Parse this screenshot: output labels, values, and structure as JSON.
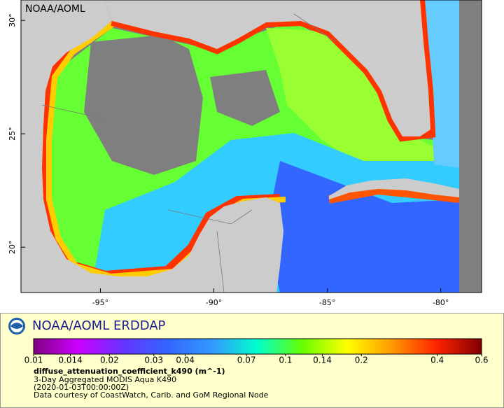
{
  "map": {
    "label": "NOAA/AOML",
    "xlim": [
      -98.5,
      -78.2
    ],
    "ylim": [
      18,
      30.9
    ],
    "xticks": [
      {
        "value": -95,
        "label": "-95°"
      },
      {
        "value": -90,
        "label": "-90°"
      },
      {
        "value": -85,
        "label": "-85°"
      },
      {
        "value": -80,
        "label": "-80°"
      }
    ],
    "yticks": [
      {
        "value": 30,
        "label": "30°"
      },
      {
        "value": 25,
        "label": "25°"
      },
      {
        "value": 20,
        "label": "20°"
      }
    ]
  },
  "legend": {
    "title": "NOAA/AOML ERDDAP",
    "colorbar": {
      "scale": "log",
      "lim": [
        0.01,
        0.6
      ],
      "ticks": [
        0.01,
        0.014,
        0.02,
        0.03,
        0.04,
        0.07,
        0.1,
        0.14,
        0.2,
        0.4,
        0.6
      ],
      "colors": [
        "#7f007f",
        "#cc00ff",
        "#6633ff",
        "#3366ff",
        "#3399ff",
        "#00ffcc",
        "#66ff00",
        "#ffff00",
        "#ff9900",
        "#ff2200",
        "#7f0000"
      ]
    },
    "variable": "diffuse_attenuation_coefficient_k490 (m^-1)",
    "lines": [
      "3-Day Aggregated MODIS Aqua K490",
      "(2020-01-03T00:00:00Z)",
      "Data courtesy of CoastWatch, Carib. and GoM Regional Node"
    ]
  }
}
